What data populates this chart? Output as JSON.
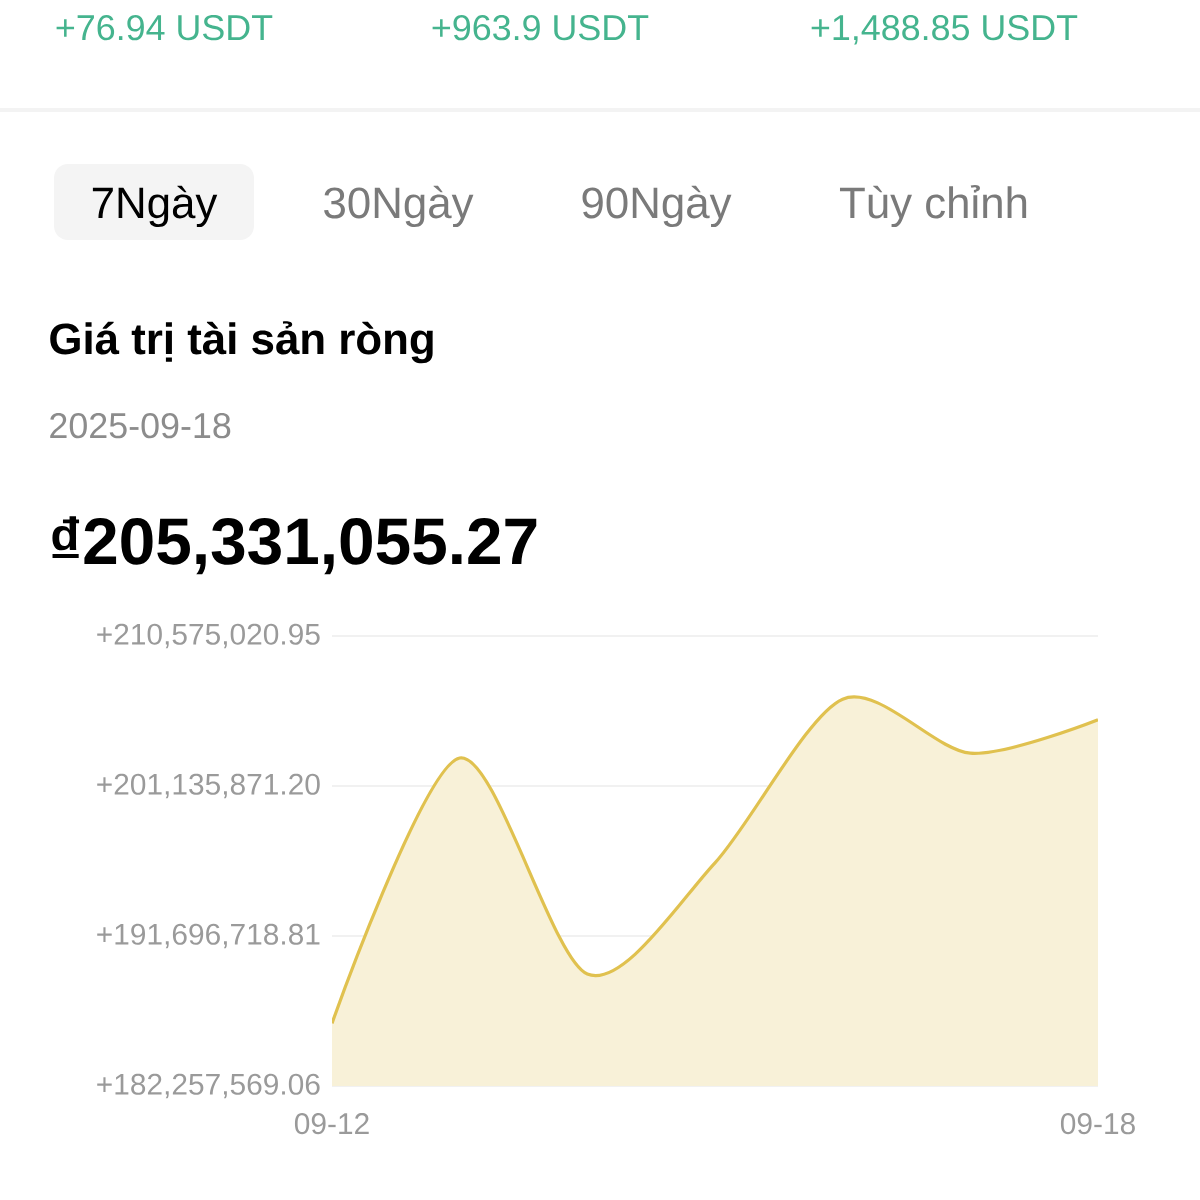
{
  "chart_data": {
    "type": "area",
    "title": "Giá trị tài sản ròng",
    "subtitle": "2025-09-18",
    "annotations": [
      "+76.94 USDT",
      "+963.9 USDT",
      "+1,488.85 USDT",
      "7Ngày",
      "30Ngày",
      "90Ngày",
      "Tùy chỉnh",
      "₫205,331,055.27"
    ],
    "categories": [
      "09-12",
      null,
      null,
      null,
      null,
      null,
      "09-18"
    ],
    "values": [
      186200000,
      202900000,
      189300000,
      196300000,
      206600000,
      203200000,
      205300000
    ],
    "color": "#e0c14f",
    "ylim": [
      182257569.06,
      210575020.95
    ],
    "yticks": [
      {
        "value": 182257569.06,
        "label": "+182,257,569.06"
      },
      {
        "value": 191696718.81,
        "label": "+191,696,718.81"
      },
      {
        "value": 201135871.2,
        "label": "+201,135,871.20"
      },
      {
        "value": 210575020.95,
        "label": "+210,575,020.95"
      }
    ],
    "grid": "y"
  }
}
